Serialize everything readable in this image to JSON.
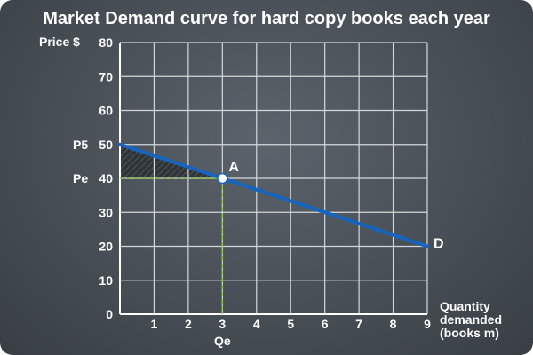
{
  "chart_data": {
    "type": "line",
    "title": "Market Demand curve for hard copy books each year",
    "ylabel": "Price $",
    "xlabel": [
      "Quantity",
      "demanded",
      "(books m)"
    ],
    "xlim": [
      0,
      9
    ],
    "ylim": [
      0,
      80
    ],
    "x_ticks": [
      0,
      1,
      2,
      3,
      4,
      5,
      6,
      7,
      8,
      9
    ],
    "y_ticks": [
      0,
      10,
      20,
      30,
      40,
      50,
      60,
      70,
      80
    ],
    "grid": true,
    "series": [
      {
        "name": "D",
        "x": [
          0,
          9
        ],
        "y": [
          50,
          20
        ],
        "color": "#1565c0"
      }
    ],
    "point": {
      "label": "A",
      "x": 3,
      "y": 40
    },
    "guide_color": "#8bc34a",
    "y_annotations": [
      {
        "label": "P5",
        "y": 50
      },
      {
        "label": "Pe",
        "y": 40
      }
    ],
    "x_annotations": [
      {
        "label": "Qe",
        "x": 3
      }
    ]
  }
}
